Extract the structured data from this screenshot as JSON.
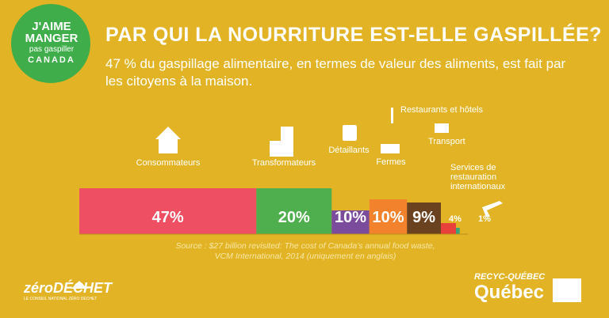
{
  "logo": {
    "line1": "J'AIME",
    "line2": "MANGER",
    "line3": "pas gaspiller",
    "line4": "CANADA"
  },
  "chart_data": {
    "type": "bar",
    "title": "PAR QUI LA NOURRITURE EST-ELLE GASPILLÉE?",
    "subtitle": "47 % du gaspillage alimentaire, en termes de valeur des aliments, est fait par les citoyens à la maison.",
    "categories": [
      "Consommateurs",
      "Transformateurs",
      "Détaillants",
      "Fermes",
      "Restaurants et hôtels",
      "Transport",
      "Services de restauration internationaux"
    ],
    "values": [
      47,
      20,
      10,
      10,
      9,
      4,
      1
    ],
    "value_labels": [
      "47%",
      "20%",
      "10%",
      "10%",
      "9%",
      "4%",
      "1%"
    ],
    "colors": [
      "#ee4f62",
      "#4fae4e",
      "#7b4b9c",
      "#f2832c",
      "#6b4220",
      "#e8403a",
      "#3aa37c"
    ],
    "source": "Source : $27 billion revisited: The cost of Canada's annual food waste, VCM International, 2014 (uniquement en anglais)"
  },
  "footer": {
    "left": "zéroDÉCHET",
    "left_sub": "LE CONSEIL NATIONAL ZÉRO DÉCHET",
    "right_top": "RECYC-QUÉBEC",
    "right": "Québec"
  }
}
